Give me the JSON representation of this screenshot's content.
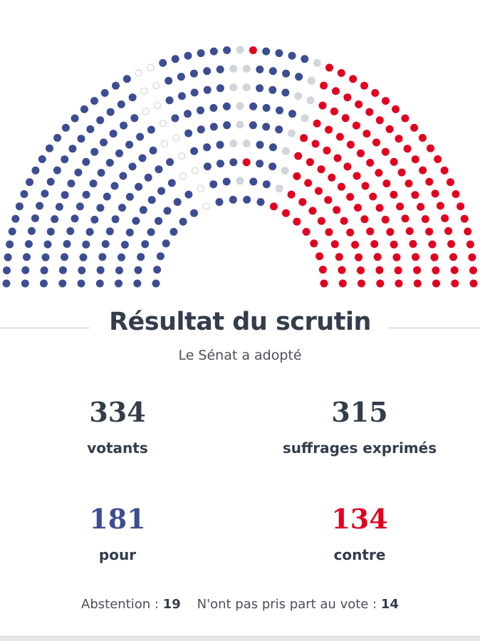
{
  "colors": {
    "pour": "#3d4d92",
    "contre": "#e1001f",
    "abstention": "#d2d5db",
    "npp": "#d2d5db",
    "text": "#333d4c"
  },
  "chart_data": {
    "type": "hemicycle",
    "total_seats": 348,
    "seat_groups_left_to_right": [
      {
        "vote": "pour",
        "count": 120
      },
      {
        "vote": "npp",
        "count": 14
      },
      {
        "vote": "pour",
        "count": 35
      },
      {
        "vote": "abstention",
        "count": 10
      },
      {
        "vote": "contre",
        "count": 2
      },
      {
        "vote": "pour",
        "count": 26
      },
      {
        "vote": "abstention",
        "count": 9
      },
      {
        "vote": "contre",
        "count": 132
      }
    ]
  },
  "result": {
    "title": "Résultat du scrutin",
    "subtitle": "Le Sénat a adopté",
    "votants": {
      "value": "334",
      "label": "votants"
    },
    "exprimes": {
      "value": "315",
      "label": "suffrages exprimés"
    },
    "pour": {
      "value": "181",
      "label": "pour"
    },
    "contre": {
      "value": "134",
      "label": "contre"
    },
    "abstention_label": "Abstention :",
    "abstention_value": "19",
    "npp_label": "N'ont pas pris part au vote :",
    "npp_value": "14"
  }
}
